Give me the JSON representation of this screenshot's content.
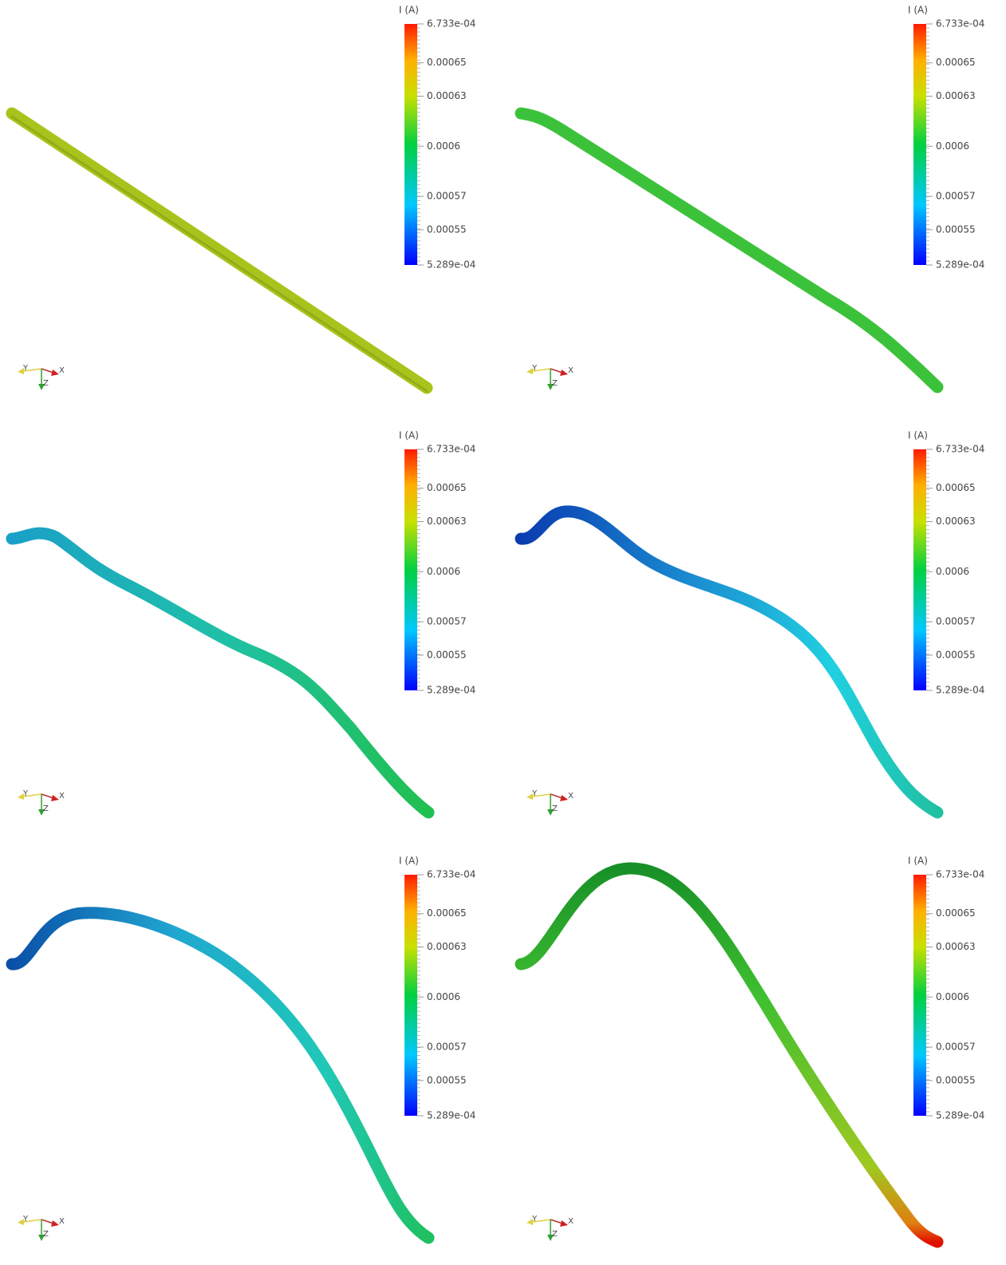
{
  "panels": [
    {
      "colorbar": {
        "title": "I (A)",
        "ticks": [
          {
            "value": 0.0006733,
            "label": "6.733e-04"
          },
          0.00065,
          0.00063,
          0.0006,
          0.00057,
          0.00055,
          {
            "value": 0.0005289,
            "label": "5.289e-04"
          }
        ]
      },
      "axes": {
        "x": "X",
        "y": "Y",
        "z": "Z"
      }
    },
    {
      "colorbar": {
        "title": "I (A)",
        "ticks": [
          {
            "value": 0.0006733,
            "label": "6.733e-04"
          },
          0.00065,
          0.00063,
          0.0006,
          0.00057,
          0.00055,
          {
            "value": 0.0005289,
            "label": "5.289e-04"
          }
        ]
      },
      "axes": {
        "x": "X",
        "y": "Y",
        "z": "Z"
      }
    },
    {
      "colorbar": {
        "title": "I (A)",
        "ticks": [
          {
            "value": 0.0006733,
            "label": "6.733e-04"
          },
          0.00065,
          0.00063,
          0.0006,
          0.00057,
          0.00055,
          {
            "value": 0.0005289,
            "label": "5.289e-04"
          }
        ]
      },
      "axes": {
        "x": "X",
        "y": "Y",
        "z": "Z"
      }
    },
    {
      "colorbar": {
        "title": "I (A)",
        "ticks": [
          {
            "value": 0.0006733,
            "label": "6.733e-04"
          },
          0.00065,
          0.00063,
          0.0006,
          0.00057,
          0.00055,
          {
            "value": 0.0005289,
            "label": "5.289e-04"
          }
        ]
      },
      "axes": {
        "x": "X",
        "y": "Y",
        "z": "Z"
      }
    },
    {
      "colorbar": {
        "title": "I (A)",
        "ticks": [
          {
            "value": 0.0006733,
            "label": "6.733e-04"
          },
          0.00065,
          0.00063,
          0.0006,
          0.00057,
          0.00055,
          {
            "value": 0.0005289,
            "label": "5.289e-04"
          }
        ]
      },
      "axes": {
        "x": "X",
        "y": "Y",
        "z": "Z"
      }
    },
    {
      "colorbar": {
        "title": "I (A)",
        "ticks": [
          {
            "value": 0.0006733,
            "label": "6.733e-04"
          },
          0.00065,
          0.00063,
          0.0006,
          0.00057,
          0.00055,
          {
            "value": 0.0005289,
            "label": "5.289e-04"
          }
        ]
      },
      "axes": {
        "x": "X",
        "y": "Y",
        "z": "Z"
      }
    }
  ]
}
